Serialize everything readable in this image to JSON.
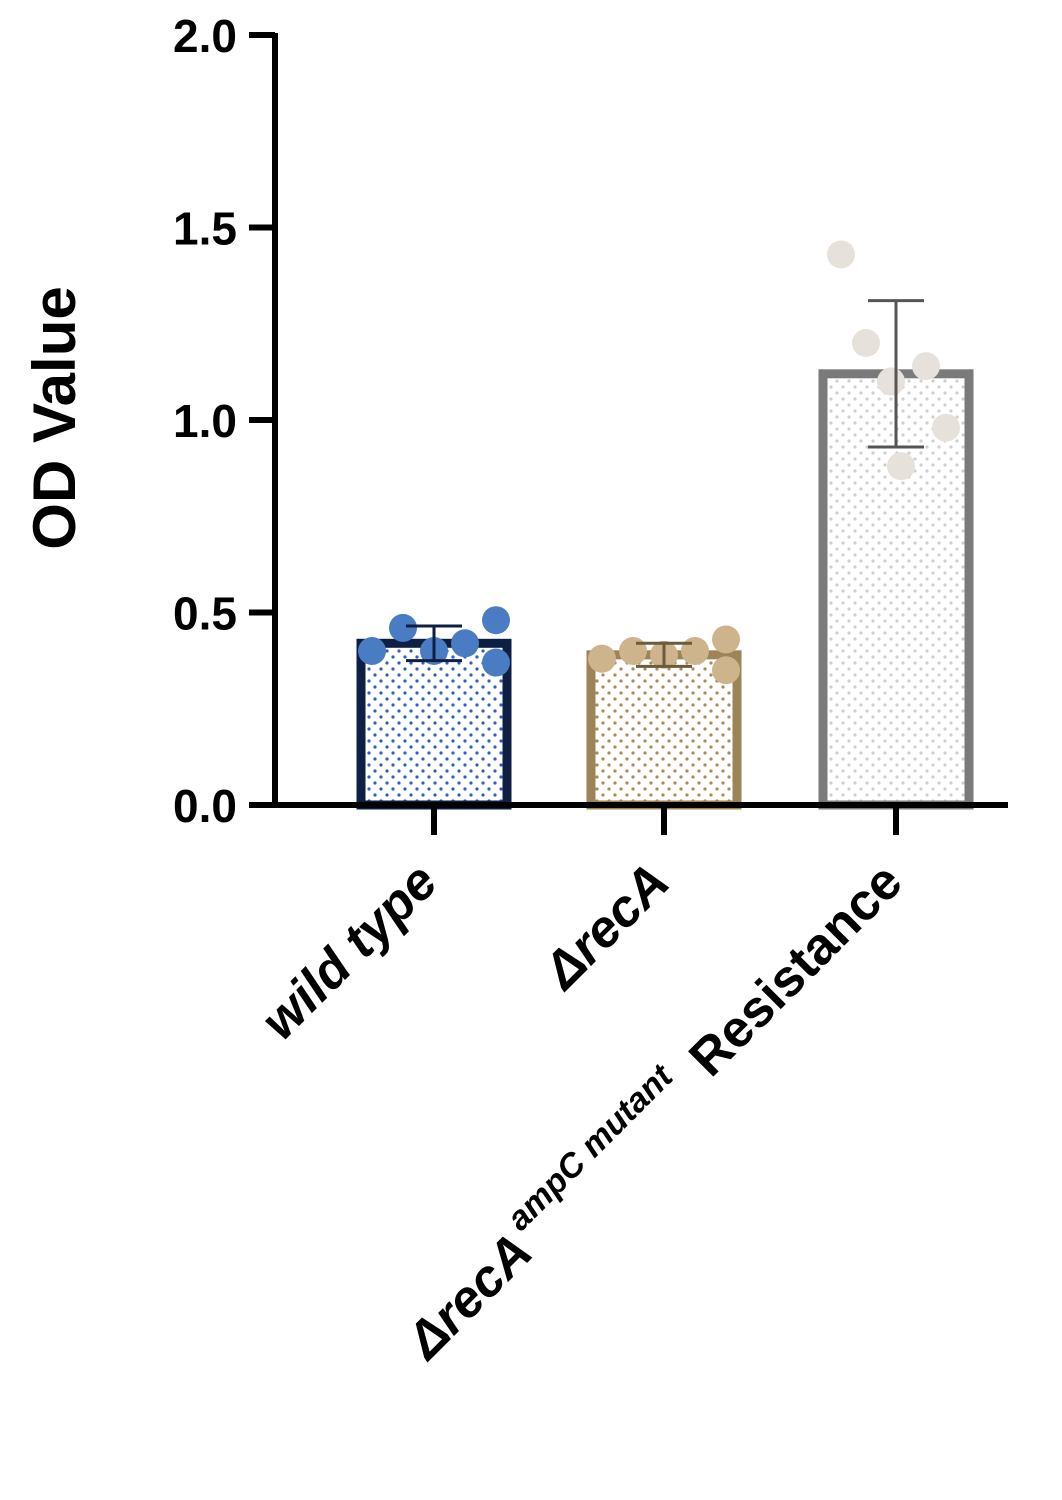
{
  "chart_data": {
    "type": "bar",
    "ylabel": "OD Value",
    "ylim": [
      0,
      2.0
    ],
    "yticks": [
      "0.0",
      "0.5",
      "1.0",
      "1.5",
      "2.0"
    ],
    "ytick_values": [
      0,
      0.5,
      1.0,
      1.5,
      2.0
    ],
    "grid": false,
    "categories": [
      "wild type",
      "ΔrecA",
      "ΔrecA ampC mutant Resistance"
    ],
    "category_labels": [
      {
        "main": "wild type",
        "sup": "",
        "suffix": ""
      },
      {
        "main": "ΔrecA",
        "sup": "",
        "suffix": ""
      },
      {
        "main": "ΔrecA",
        "sup": "ampC mutant",
        "suffix": "Resistance"
      }
    ],
    "values": [
      0.42,
      0.39,
      1.12
    ],
    "error": [
      0.045,
      0.03,
      0.19
    ],
    "points": [
      [
        0.4,
        0.46,
        0.4,
        0.42,
        0.48,
        0.37
      ],
      [
        0.38,
        0.4,
        0.39,
        0.4,
        0.43,
        0.35
      ],
      [
        1.43,
        1.2,
        1.1,
        1.14,
        0.98,
        0.88
      ]
    ],
    "bar_edge_colors": [
      "#0e1f44",
      "#9c8358",
      "#7a7a7a"
    ],
    "bar_pattern_colors": [
      "#2f5fbf",
      "#a88c5c",
      "#cfcfcf"
    ],
    "point_colors": [
      "#4a7cc4",
      "#cdb48c",
      "#e6e1da"
    ]
  }
}
